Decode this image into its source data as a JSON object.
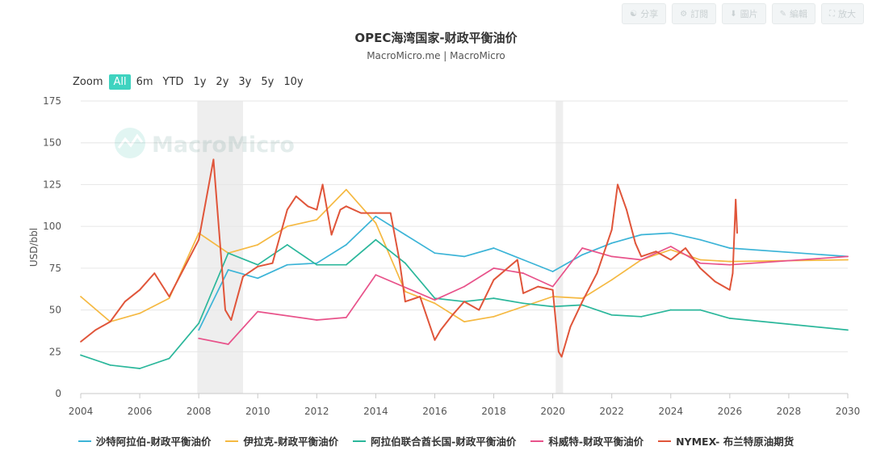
{
  "toolbar": {
    "share": "分享",
    "subscribe": "訂閱",
    "image": "圖片",
    "edit": "編輯",
    "enlarge": "放大"
  },
  "title": "OPEC海湾国家-财政平衡油价",
  "subtitle": "MacroMicro.me | MacroMicro",
  "watermark": "MacroMicro",
  "zoom": {
    "label": "Zoom",
    "options": [
      "All",
      "6m",
      "YTD",
      "1y",
      "2y",
      "3y",
      "5y",
      "10y"
    ],
    "active": "All"
  },
  "chart_data": {
    "type": "line",
    "ylabel": "USD/bbl",
    "xlabel": "",
    "ylim": [
      0,
      175
    ],
    "xlim": [
      2004,
      2030
    ],
    "yticks": [
      0,
      25,
      50,
      75,
      100,
      125,
      150,
      175
    ],
    "xticks": [
      2004,
      2006,
      2008,
      2010,
      2012,
      2014,
      2016,
      2018,
      2020,
      2022,
      2024,
      2026,
      2028,
      2030
    ],
    "grid": true,
    "legend_position": "bottom",
    "shaded_periods": [
      [
        2007.95,
        2009.5
      ],
      [
        2020.1,
        2020.35
      ]
    ],
    "series": [
      {
        "name": "沙特阿拉伯-财政平衡油价",
        "color": "#3cb4d7",
        "x": [
          2008,
          2009,
          2010,
          2011,
          2012,
          2013,
          2014,
          2015,
          2016,
          2017,
          2018,
          2019,
          2020,
          2021,
          2022,
          2023,
          2024,
          2025,
          2026,
          2030
        ],
        "y": [
          38,
          74,
          69,
          77,
          78,
          89,
          106,
          95,
          84,
          82,
          87,
          80,
          73,
          83,
          90,
          95,
          96,
          92,
          87,
          82
        ]
      },
      {
        "name": "伊拉克-财政平衡油价",
        "color": "#f5b942",
        "x": [
          2004,
          2005,
          2006,
          2007,
          2008,
          2009,
          2010,
          2011,
          2012,
          2013,
          2014,
          2015,
          2016,
          2017,
          2018,
          2019,
          2020,
          2021,
          2022,
          2023,
          2024,
          2025,
          2026,
          2030
        ],
        "y": [
          58,
          43,
          48,
          57,
          96,
          84,
          89,
          100,
          104,
          122,
          102,
          61,
          54,
          43,
          46,
          52,
          58,
          57,
          68,
          80,
          86,
          80,
          79,
          80
        ]
      },
      {
        "name": "阿拉伯联合酋长国-财政平衡油价",
        "color": "#2bb79b",
        "x": [
          2004,
          2005,
          2006,
          2007,
          2008,
          2009,
          2010,
          2011,
          2012,
          2013,
          2014,
          2015,
          2016,
          2017,
          2018,
          2019,
          2020,
          2021,
          2022,
          2023,
          2024,
          2025,
          2026,
          2030
        ],
        "y": [
          23,
          17,
          15,
          21,
          42,
          84,
          77,
          89,
          77,
          77,
          92,
          78,
          57,
          55,
          57,
          54,
          52,
          53,
          47,
          46,
          50,
          50,
          45,
          38
        ]
      },
      {
        "name": "科威特-财政平衡油价",
        "color": "#e8528a",
        "x": [
          2008,
          2009,
          2010,
          2012,
          2013,
          2014,
          2016,
          2017,
          2018,
          2019,
          2020,
          2021,
          2022,
          2023,
          2024,
          2025,
          2026,
          2030
        ],
        "y": [
          33,
          29.5,
          49,
          44,
          45.5,
          71,
          56,
          64,
          75,
          72,
          64,
          87,
          82,
          80,
          88,
          78,
          77,
          82
        ]
      },
      {
        "name": "NYMEX- 布兰特原油期货",
        "color": "#e0553a",
        "x": [
          2004,
          2004.5,
          2005,
          2005.5,
          2006,
          2006.5,
          2007,
          2007.5,
          2008,
          2008.5,
          2008.9,
          2009.1,
          2009.5,
          2010,
          2010.5,
          2011,
          2011.3,
          2011.7,
          2012,
          2012.2,
          2012.5,
          2012.8,
          2013,
          2013.5,
          2014,
          2014.5,
          2014.8,
          2015,
          2015.5,
          2016,
          2016.2,
          2016.6,
          2017,
          2017.5,
          2018,
          2018.8,
          2019,
          2019.5,
          2020,
          2020.2,
          2020.3,
          2020.6,
          2021,
          2021.5,
          2022,
          2022.2,
          2022.5,
          2022.8,
          2023,
          2023.5,
          2024,
          2024.5,
          2025,
          2025.5,
          2026,
          2026.1,
          2026.2,
          2026.25
        ],
        "y": [
          31,
          38,
          43,
          55,
          62,
          72,
          58,
          75,
          92,
          140,
          50,
          44,
          70,
          76,
          78,
          110,
          118,
          112,
          110,
          125,
          95,
          110,
          112,
          108,
          108,
          108,
          80,
          55,
          58,
          32,
          38,
          47,
          55,
          50,
          68,
          80,
          60,
          64,
          62,
          25,
          22,
          40,
          55,
          72,
          98,
          125,
          110,
          90,
          82,
          85,
          80,
          87,
          75,
          67,
          62,
          72,
          116,
          96
        ]
      }
    ]
  }
}
